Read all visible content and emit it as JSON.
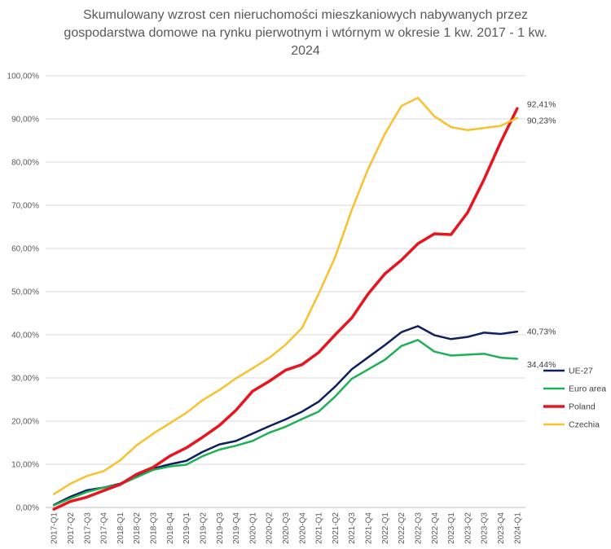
{
  "chart_data": {
    "type": "line",
    "title": "Skumulowany wzrost cen nieruchomości mieszkaniowych nabywanych przez gospodarstwa domowe na rynku pierwotnym i wtórnym w okresie 1 kw. 2017 - 1 kw. 2024",
    "xlabel": "",
    "ylabel": "",
    "ylim": [
      0,
      100
    ],
    "yticks": [
      "0,00%",
      "10,00%",
      "20,00%",
      "30,00%",
      "40,00%",
      "50,00%",
      "60,00%",
      "70,00%",
      "80,00%",
      "90,00%",
      "100,00%"
    ],
    "grid": true,
    "legend_position": "right",
    "categories": [
      "2017-Q1",
      "2017-Q2",
      "2017-Q3",
      "2017-Q4",
      "2018-Q1",
      "2018-Q2",
      "2018-Q3",
      "2018-Q4",
      "2019-Q1",
      "2019-Q2",
      "2019-Q3",
      "2019-Q4",
      "2020-Q1",
      "2020-Q2",
      "2020-Q3",
      "2020-Q4",
      "2021-Q1",
      "2021-Q2",
      "2021-Q3",
      "2021-Q4",
      "2022-Q1",
      "2022-Q2",
      "2022-Q3",
      "2022-Q4",
      "2023-Q1",
      "2023-Q2",
      "2023-Q3",
      "2023-Q4",
      "2024-Q1"
    ],
    "series": [
      {
        "name": "UE-27",
        "color": "#0d1f5c",
        "width": 2.5,
        "values": [
          0.6,
          2.5,
          4.0,
          4.6,
          5.5,
          7.4,
          9.0,
          10.0,
          10.8,
          12.9,
          14.6,
          15.4,
          17.1,
          18.8,
          20.4,
          22.2,
          24.5,
          28.0,
          32.0,
          34.8,
          37.6,
          40.6,
          42.0,
          39.9,
          39.0,
          39.5,
          40.5,
          40.2,
          40.73
        ],
        "end_label": "40,73%"
      },
      {
        "name": "Euro area",
        "color": "#1db155",
        "width": 2.5,
        "values": [
          0.5,
          2.1,
          3.6,
          4.6,
          5.3,
          7.0,
          8.7,
          9.5,
          9.9,
          11.9,
          13.4,
          14.3,
          15.4,
          17.3,
          18.7,
          20.5,
          22.2,
          25.7,
          29.8,
          32.0,
          34.2,
          37.4,
          38.8,
          36.1,
          35.2,
          35.4,
          35.6,
          34.7,
          34.44
        ],
        "end_label": "34,44%"
      },
      {
        "name": "Poland",
        "color": "#e8141e",
        "width": 3.5,
        "values": [
          -0.4,
          1.4,
          2.4,
          3.9,
          5.3,
          7.7,
          9.3,
          11.9,
          13.8,
          16.3,
          19.0,
          22.5,
          26.9,
          29.2,
          31.8,
          33.1,
          35.9,
          40.0,
          43.9,
          49.5,
          54.1,
          57.3,
          61.1,
          63.4,
          63.2,
          68.3,
          76.0,
          84.6,
          92.41
        ],
        "end_label": "92,41%"
      },
      {
        "name": "Czechia",
        "color": "#fbc02d",
        "width": 2.5,
        "values": [
          3.1,
          5.5,
          7.3,
          8.4,
          10.9,
          14.4,
          17.1,
          19.5,
          21.9,
          24.9,
          27.2,
          29.9,
          32.2,
          34.6,
          37.7,
          41.6,
          49.5,
          58.0,
          68.9,
          78.5,
          86.5,
          93.0,
          94.9,
          90.6,
          88.1,
          87.4,
          87.9,
          88.4,
          90.23
        ],
        "end_label": "90,23%"
      }
    ]
  }
}
